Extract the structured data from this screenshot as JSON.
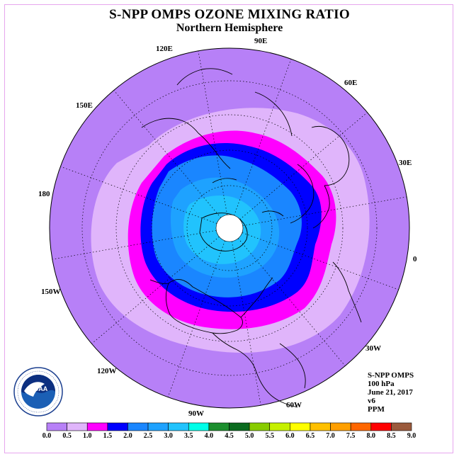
{
  "title": "S-NPP OMPS OZONE MIXING RATIO",
  "subtitle": "Northern Hemisphere",
  "longitude_labels": [
    "90E",
    "60E",
    "30E",
    "0",
    "30W",
    "60W",
    "90W",
    "120W",
    "150W",
    "180",
    "150E",
    "120E"
  ],
  "info": {
    "instrument": "S-NPP OMPS",
    "level": "100 hPa",
    "date": "June 21, 2017",
    "version": "v6",
    "units": "PPM"
  },
  "colorbar": {
    "labels": [
      "0.0",
      "0.5",
      "1.0",
      "1.5",
      "2.0",
      "2.5",
      "3.0",
      "3.5",
      "4.0",
      "4.5",
      "5.0",
      "5.5",
      "6.0",
      "6.5",
      "7.0",
      "7.5",
      "8.0",
      "8.5",
      "9.0"
    ],
    "colors": [
      "#b780f7",
      "#e0b5fb",
      "#ff00ff",
      "#0000ff",
      "#1a86ff",
      "#1ea2ff",
      "#21c3fd",
      "#00ffe8",
      "#1c8f2e",
      "#0b6b1f",
      "#88cc00",
      "#c6f000",
      "#ffff00",
      "#ffc000",
      "#ff9f00",
      "#ff6600",
      "#ff0000",
      "#9b5a3c"
    ]
  },
  "field_levels": [
    {
      "min": 0.0,
      "max": 0.5,
      "color": "#b780f7"
    },
    {
      "min": 0.5,
      "max": 1.0,
      "color": "#e0b5fb"
    },
    {
      "min": 1.0,
      "max": 1.5,
      "color": "#ff00ff"
    },
    {
      "min": 1.5,
      "max": 2.0,
      "color": "#0000ff"
    },
    {
      "min": 2.0,
      "max": 2.5,
      "color": "#1a86ff"
    },
    {
      "min": 2.5,
      "max": 3.0,
      "color": "#1ea2ff"
    },
    {
      "min": 3.0,
      "max": 3.5,
      "color": "#21c3fd"
    }
  ],
  "logo_text": "NOAA",
  "logo_ring_text": "NATIONAL OCEANIC AND ATMOSPHERIC ADMINISTRATION · U.S. DEPARTMENT OF COMMERCE"
}
